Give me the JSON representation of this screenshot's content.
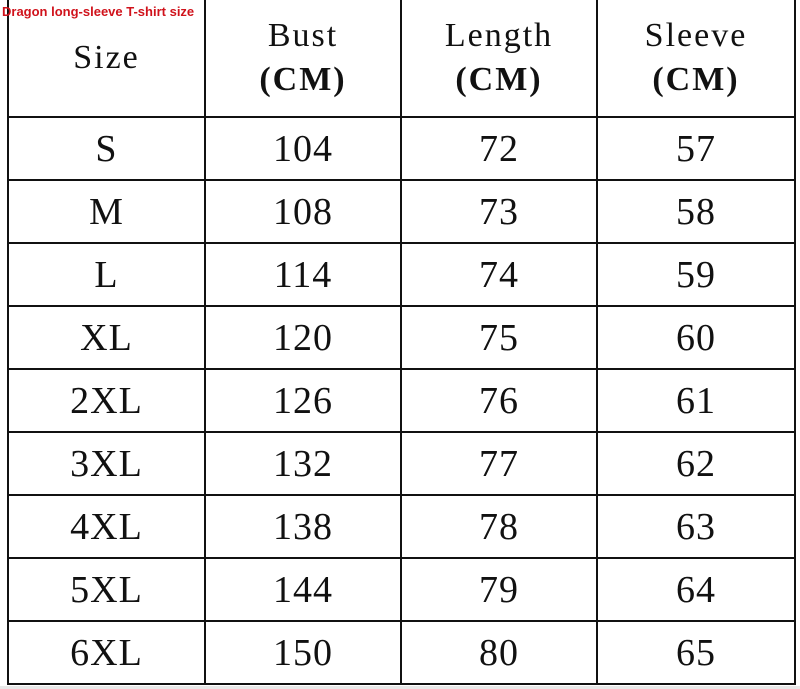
{
  "caption": "Dragon long-sleeve T-shirt size",
  "accent_color": "#d0121b",
  "headers": [
    {
      "label": "Size",
      "unit": ""
    },
    {
      "label": "Bust",
      "unit": "(CM)"
    },
    {
      "label": "Length",
      "unit": "(CM)"
    },
    {
      "label": "Sleeve",
      "unit": "(CM)"
    }
  ],
  "rows": [
    [
      "S",
      "104",
      "72",
      "57"
    ],
    [
      "M",
      "108",
      "73",
      "58"
    ],
    [
      "L",
      "114",
      "74",
      "59"
    ],
    [
      "XL",
      "120",
      "75",
      "60"
    ],
    [
      "2XL",
      "126",
      "76",
      "61"
    ],
    [
      "3XL",
      "132",
      "77",
      "62"
    ],
    [
      "4XL",
      "138",
      "78",
      "63"
    ],
    [
      "5XL",
      "144",
      "79",
      "64"
    ],
    [
      "6XL",
      "150",
      "80",
      "65"
    ]
  ]
}
